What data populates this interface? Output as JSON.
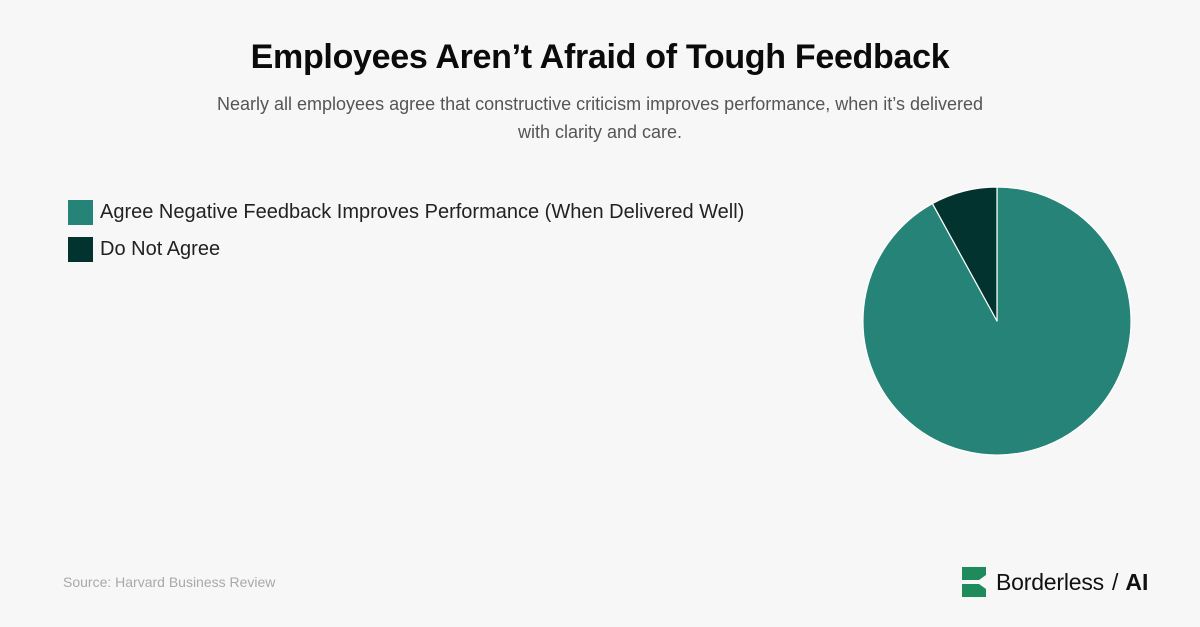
{
  "header": {
    "title": "Employees Aren’t Afraid of Tough Feedback",
    "subtitle": "Nearly all employees agree that constructive criticism improves performance, when it’s delivered with clarity and care."
  },
  "colors": {
    "agree": "#268377",
    "disagree": "#03332f",
    "logo": "#1f8a5c"
  },
  "chart_data": {
    "type": "pie",
    "title": "Employees Aren’t Afraid of Tough Feedback",
    "legend_position": "top-left",
    "slices": [
      {
        "label": "Agree Negative Feedback Improves Performance (When Delivered Well)",
        "value": 92,
        "color": "#268377"
      },
      {
        "label": "Do Not Agree",
        "value": 8,
        "color": "#03332f"
      }
    ]
  },
  "footer": {
    "source": "Source: Harvard Business Review",
    "brand_name": "Borderless",
    "brand_separator": "/",
    "brand_suffix": "AI"
  }
}
